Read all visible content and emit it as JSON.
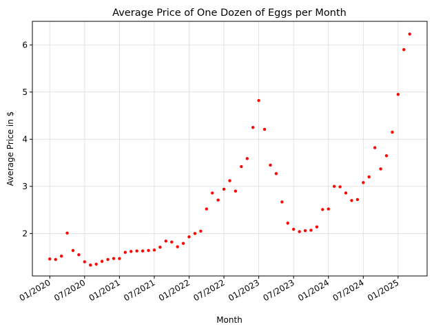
{
  "chart_data": {
    "type": "scatter",
    "title": "Average Price of One Dozen of Eggs per Month",
    "xlabel": "Month",
    "ylabel": "Average Price in $",
    "x_ticks": [
      "01/2020",
      "07/2020",
      "01/2021",
      "07/2021",
      "01/2022",
      "07/2022",
      "01/2023",
      "07/2023",
      "01/2024",
      "07/2024",
      "01/2025"
    ],
    "y_ticks": [
      "2",
      "3",
      "4",
      "5",
      "6"
    ],
    "ylim": [
      1.1,
      6.5
    ],
    "xlim": [
      "2019-10",
      "2025-06"
    ],
    "grid": true,
    "marker_color": "#ff0000",
    "series": [
      {
        "x": [
          "2020-01",
          "2020-02",
          "2020-03",
          "2020-04",
          "2020-05",
          "2020-06",
          "2020-07",
          "2020-08",
          "2020-09",
          "2020-10",
          "2020-11",
          "2020-12",
          "2021-01",
          "2021-02",
          "2021-03",
          "2021-04",
          "2021-05",
          "2021-06",
          "2021-07",
          "2021-08",
          "2021-09",
          "2021-10",
          "2021-11",
          "2021-12",
          "2022-01",
          "2022-02",
          "2022-03",
          "2022-04",
          "2022-05",
          "2022-06",
          "2022-07",
          "2022-08",
          "2022-09",
          "2022-10",
          "2022-11",
          "2022-12",
          "2023-01",
          "2023-02",
          "2023-03",
          "2023-04",
          "2023-05",
          "2023-06",
          "2023-07",
          "2023-08",
          "2023-09",
          "2023-10",
          "2023-11",
          "2023-12",
          "2024-01",
          "2024-02",
          "2024-03",
          "2024-04",
          "2024-05",
          "2024-06",
          "2024-07",
          "2024-08",
          "2024-09",
          "2024-10",
          "2024-11",
          "2024-12",
          "2025-01",
          "2025-02",
          "2025-03"
        ],
        "y": [
          1.46,
          1.45,
          1.52,
          2.01,
          1.64,
          1.55,
          1.4,
          1.33,
          1.35,
          1.41,
          1.45,
          1.47,
          1.47,
          1.6,
          1.62,
          1.63,
          1.63,
          1.64,
          1.65,
          1.71,
          1.84,
          1.82,
          1.72,
          1.79,
          1.93,
          2.0,
          2.05,
          2.52,
          2.86,
          2.71,
          2.94,
          3.12,
          2.9,
          3.42,
          3.59,
          4.25,
          4.82,
          4.21,
          3.45,
          3.27,
          2.67,
          2.22,
          2.09,
          2.04,
          2.06,
          2.07,
          2.14,
          2.51,
          2.52,
          3.0,
          2.99,
          2.86,
          2.7,
          2.72,
          3.08,
          3.2,
          3.82,
          3.37,
          3.65,
          4.15,
          4.95,
          5.9,
          6.23
        ]
      }
    ]
  }
}
